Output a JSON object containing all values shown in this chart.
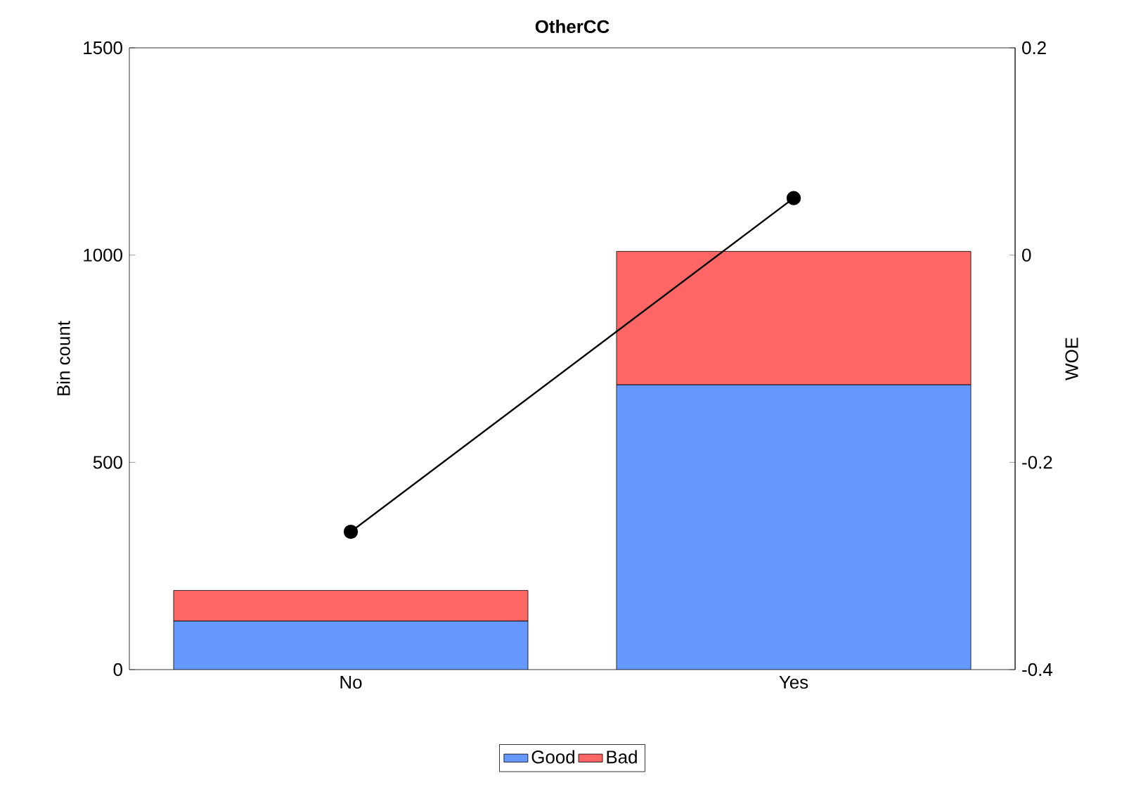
{
  "chart_data": {
    "type": "bar",
    "title": "OtherCC",
    "ylabel": "Bin count",
    "y2label": "WOE",
    "categories": [
      "No",
      "Yes"
    ],
    "stacked": true,
    "series": [
      {
        "name": "Good",
        "color": "#6699ff",
        "values": [
          117,
          687
        ]
      },
      {
        "name": "Bad",
        "color": "#ff6666",
        "values": [
          74,
          322
        ]
      },
      {
        "type": "line",
        "axis": "y2",
        "color": "#000000",
        "values": [
          -0.267,
          0.055
        ]
      }
    ],
    "ylim": [
      0,
      1500
    ],
    "yticks": [
      0,
      500,
      1000,
      1500
    ],
    "y2lim": [
      -0.4,
      0.2
    ],
    "y2ticks": [
      -0.4,
      -0.2,
      0,
      0.2
    ],
    "marker": "circle",
    "line_style": "solid",
    "legend": "bottom",
    "grid": false
  }
}
